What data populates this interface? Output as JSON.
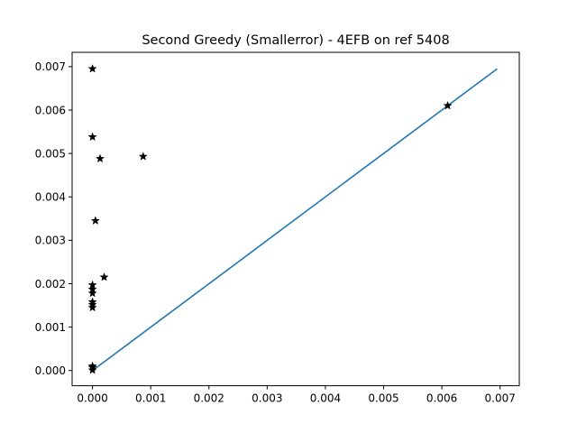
{
  "chart_data": {
    "type": "scatter",
    "title": "Second Greedy (Smallerror) - 4EFB on ref 5408",
    "xlabel": "",
    "ylabel": "",
    "xlim": [
      -0.00035,
      0.00733
    ],
    "ylim": [
      -0.00035,
      0.00733
    ],
    "x_ticks": [
      0.0,
      0.001,
      0.002,
      0.003,
      0.004,
      0.005,
      0.006,
      0.007
    ],
    "x_tick_labels": [
      "0.000",
      "0.001",
      "0.002",
      "0.003",
      "0.004",
      "0.005",
      "0.006",
      "0.007"
    ],
    "y_ticks": [
      0.0,
      0.001,
      0.002,
      0.003,
      0.004,
      0.005,
      0.006,
      0.007
    ],
    "y_tick_labels": [
      "0.000",
      "0.001",
      "0.002",
      "0.003",
      "0.004",
      "0.005",
      "0.006",
      "0.007"
    ],
    "grid": false,
    "marker": "star",
    "marker_color": "#000000",
    "line_color": "#1f77b4",
    "reference_line": {
      "x": [
        0.0,
        0.00695
      ],
      "y": [
        0.0,
        0.00695
      ]
    },
    "points": [
      {
        "x": 0.0,
        "y": 0.00695
      },
      {
        "x": 0.0,
        "y": 0.00538
      },
      {
        "x": 0.00013,
        "y": 0.00488
      },
      {
        "x": 0.00087,
        "y": 0.00493
      },
      {
        "x": 5e-05,
        "y": 0.00345
      },
      {
        "x": 0.0002,
        "y": 0.00215
      },
      {
        "x": 0.0,
        "y": 0.00197
      },
      {
        "x": 0.0,
        "y": 0.00187
      },
      {
        "x": 0.0,
        "y": 0.00178
      },
      {
        "x": 0.0,
        "y": 0.00158
      },
      {
        "x": 0.0,
        "y": 0.00152
      },
      {
        "x": 0.0,
        "y": 0.00145
      },
      {
        "x": 0.0,
        "y": 0.0001
      },
      {
        "x": 0.0,
        "y": 7e-05
      },
      {
        "x": 0.0,
        "y": 1e-05
      },
      {
        "x": 0.0061,
        "y": 0.0061
      }
    ]
  }
}
